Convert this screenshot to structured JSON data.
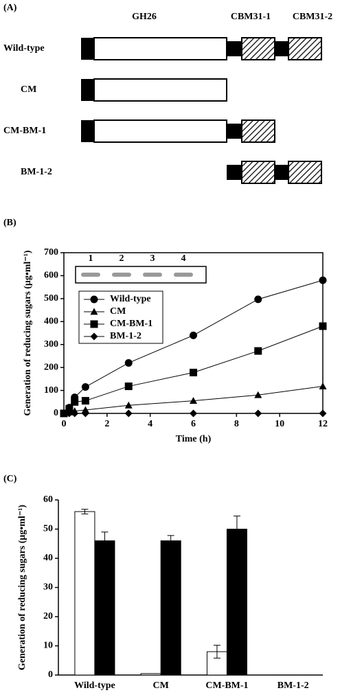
{
  "diagram": {
    "label": "(A)",
    "domains": [
      "GH26",
      "CBM31-1",
      "CBM31-2"
    ],
    "constructs": [
      "Wild-type",
      "CM",
      "CM-BM-1",
      "BM-1-2"
    ]
  },
  "chart_data": [
    {
      "type": "line",
      "label": "(B)",
      "xlabel": "Time (h)",
      "ylabel": "Generation of reducing sugars (μg•ml⁻¹)",
      "inset_labels": [
        "1",
        "2",
        "3",
        "4"
      ],
      "x": [
        0,
        0.25,
        0.5,
        1,
        3,
        6,
        9,
        12
      ],
      "series": [
        {
          "name": "Wild-type",
          "color": "#000000",
          "marker": "circle",
          "values": [
            0,
            25,
            70,
            115,
            220,
            340,
            497,
            580
          ]
        },
        {
          "name": "CM",
          "color": "#000000",
          "marker": "triangle",
          "values": [
            0,
            5,
            10,
            15,
            35,
            55,
            80,
            118
          ]
        },
        {
          "name": "CM-BM-1",
          "color": "#000000",
          "marker": "square",
          "values": [
            0,
            20,
            50,
            55,
            118,
            178,
            272,
            380
          ]
        },
        {
          "name": "BM-1-2",
          "color": "#000000",
          "marker": "diamond",
          "values": [
            0,
            0,
            0,
            0,
            0,
            0,
            0,
            0
          ]
        }
      ],
      "xlim": [
        0,
        12
      ],
      "xticks": [
        0,
        2,
        4,
        6,
        8,
        10,
        12
      ],
      "ylim": [
        0,
        700
      ],
      "yticks": [
        0,
        100,
        200,
        300,
        400,
        500,
        600,
        700
      ]
    },
    {
      "type": "bar",
      "label": "(C)",
      "ylabel": "Generation of reducing sugars (μg•ml⁻¹)",
      "categories": [
        "Wild-type",
        "CM",
        "CM-BM-1",
        "BM-1-2"
      ],
      "series": [
        {
          "color": "#ffffff",
          "values": [
            56,
            0.5,
            8,
            0
          ],
          "errors": [
            0.8,
            null,
            2.2,
            null
          ]
        },
        {
          "color": "#000000",
          "values": [
            46,
            46,
            50,
            0
          ],
          "errors": [
            3,
            1.8,
            4.5,
            null
          ]
        }
      ],
      "ylim": [
        0,
        60
      ],
      "yticks": [
        0,
        10,
        20,
        30,
        40,
        50,
        60
      ]
    }
  ]
}
